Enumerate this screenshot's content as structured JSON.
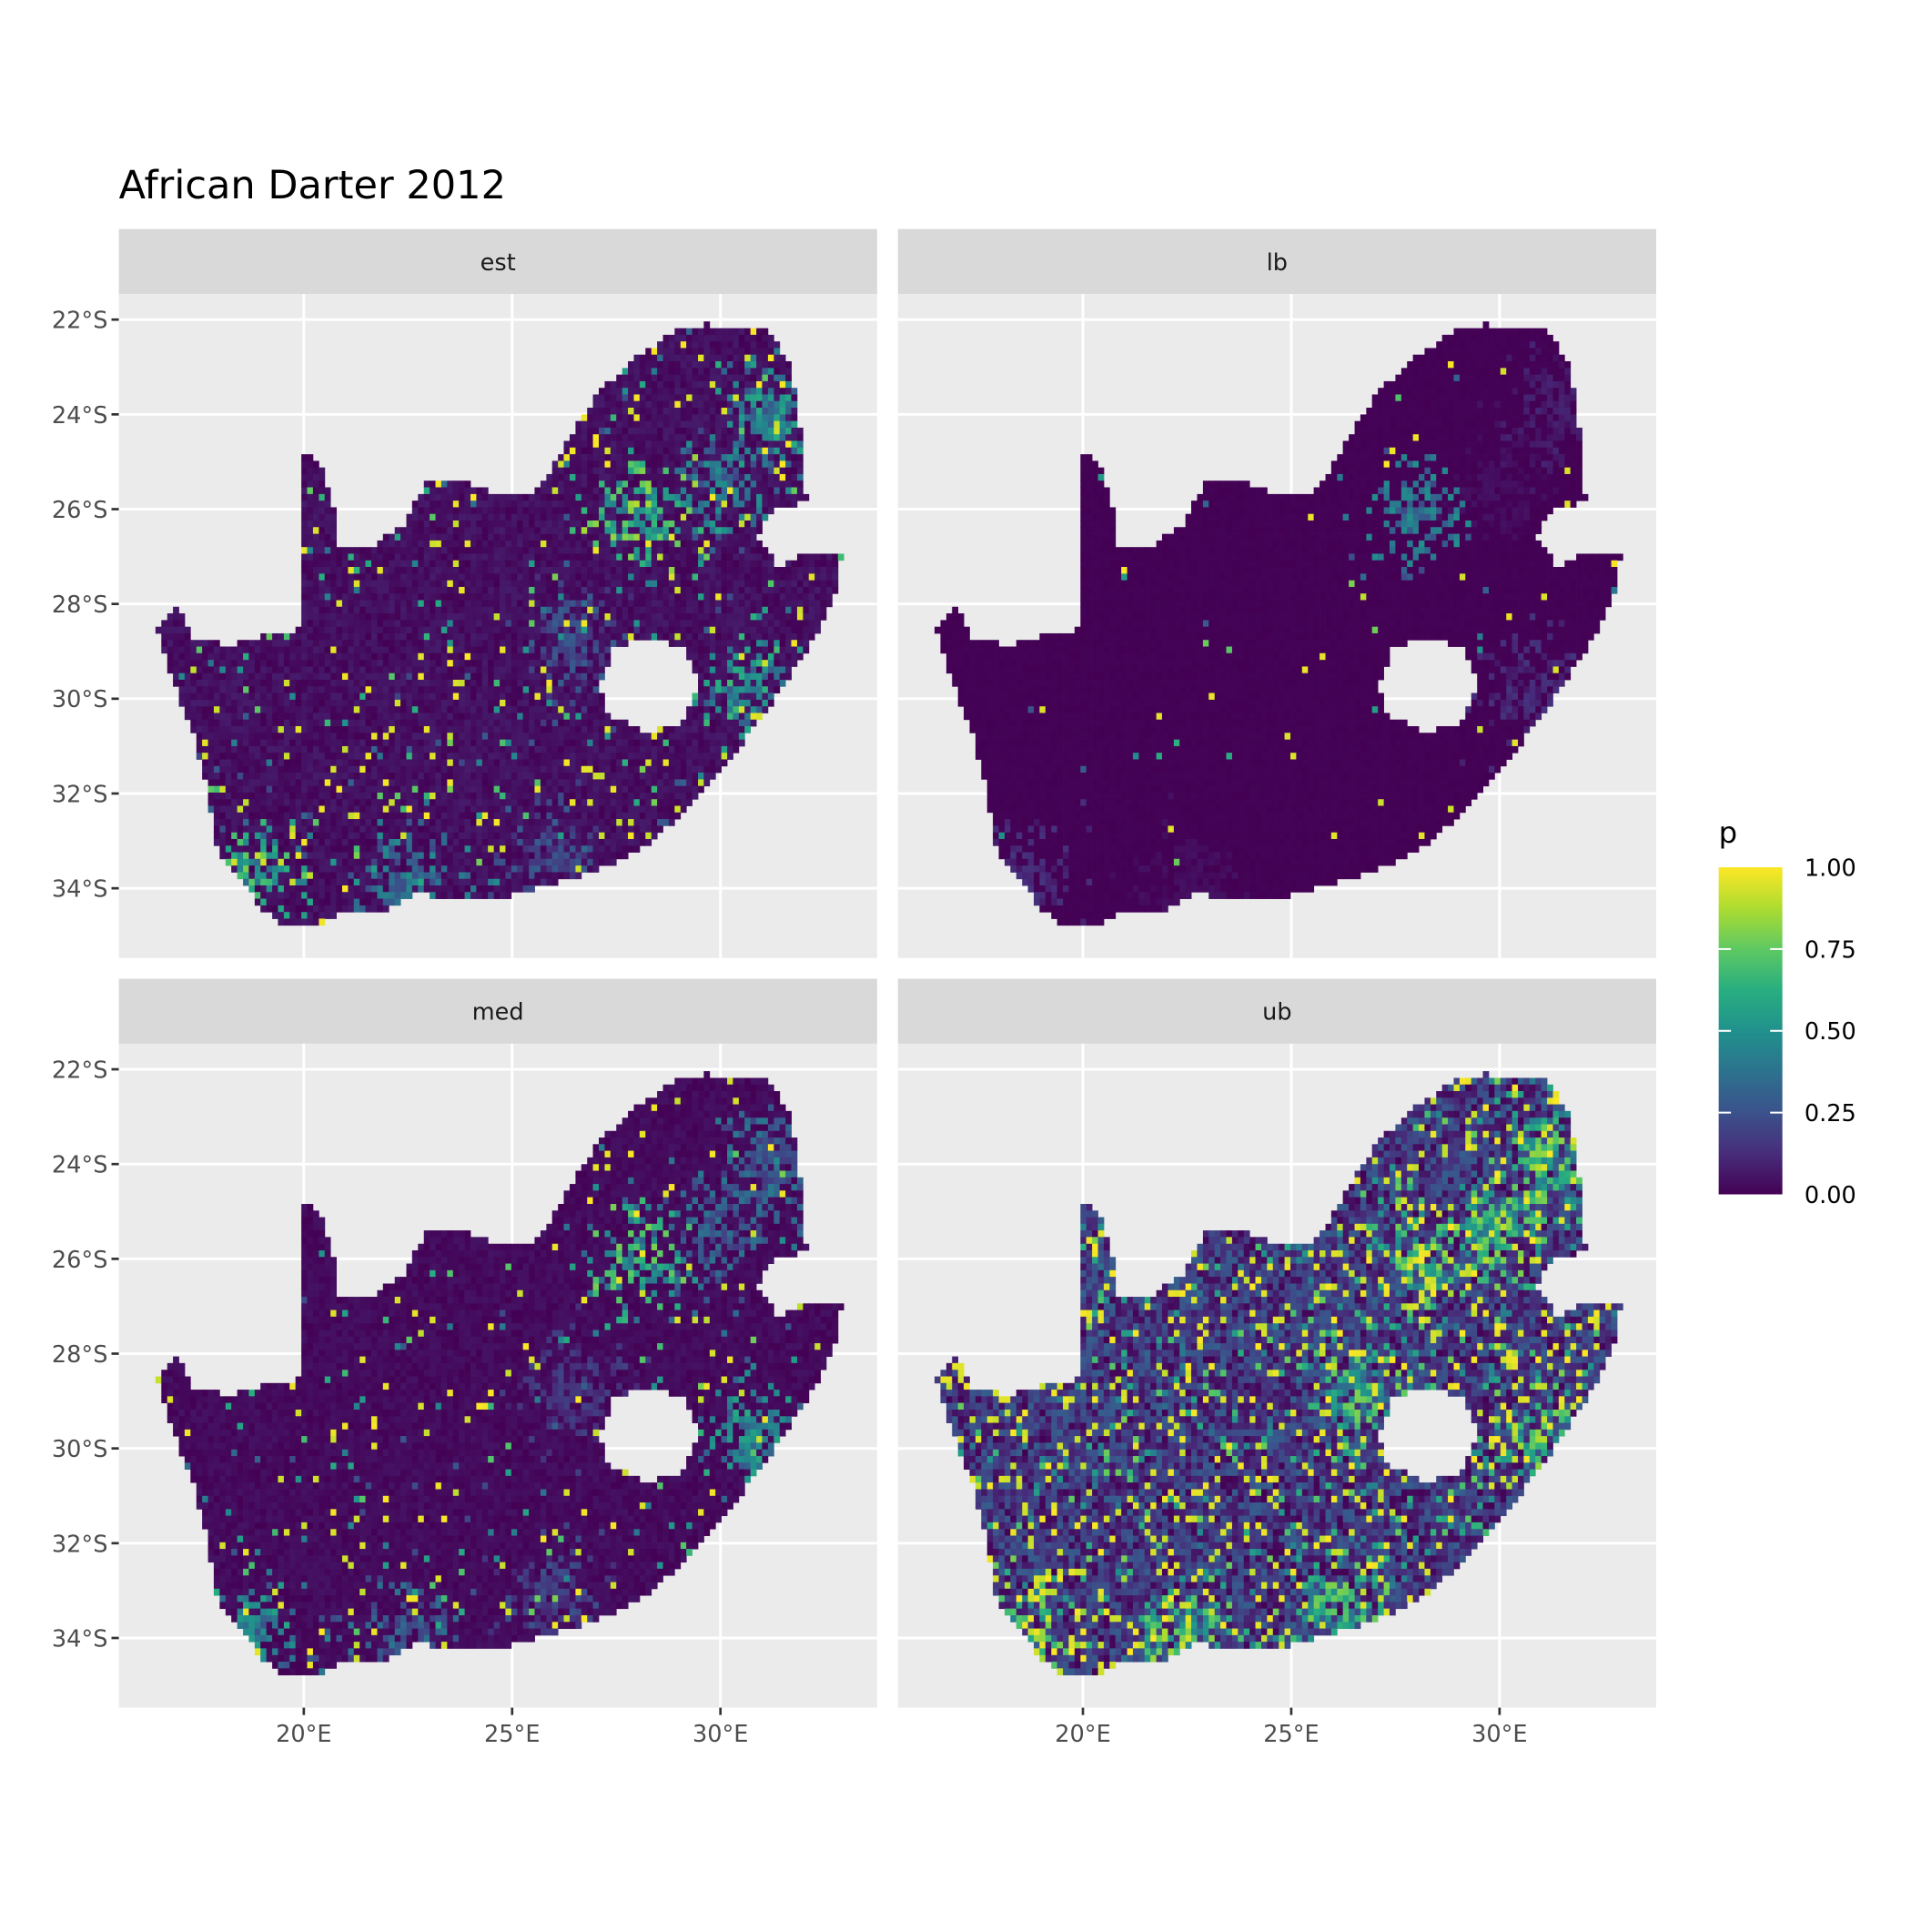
{
  "chart_data": {
    "type": "heatmap",
    "title": "African Darter 2012",
    "facets": [
      "est",
      "lb",
      "med",
      "ub"
    ],
    "x_ticks": [
      {
        "value": 20,
        "label": "20°E"
      },
      {
        "value": 25,
        "label": "25°E"
      },
      {
        "value": 30,
        "label": "30°E"
      }
    ],
    "y_ticks": [
      {
        "value": -22,
        "label": "22°S"
      },
      {
        "value": -24,
        "label": "24°S"
      },
      {
        "value": -26,
        "label": "26°S"
      },
      {
        "value": -28,
        "label": "28°S"
      },
      {
        "value": -30,
        "label": "30°S"
      },
      {
        "value": -32,
        "label": "32°S"
      },
      {
        "value": -34,
        "label": "34°S"
      }
    ],
    "xlim": [
      15.56,
      33.76
    ],
    "ylim": [
      -35.47,
      -21.46
    ],
    "grid": true,
    "legend": {
      "title": "p",
      "position": "right",
      "palette": "viridis",
      "range": [
        0,
        1
      ],
      "ticks": [
        {
          "value": 1,
          "label": "1.00"
        },
        {
          "value": 0.75,
          "label": "0.75"
        },
        {
          "value": 0.5,
          "label": "0.50"
        },
        {
          "value": 0.25,
          "label": "0.25"
        },
        {
          "value": 0,
          "label": "0.00"
        }
      ]
    },
    "colors": {
      "panel_bg": "#ebebeb",
      "strip_bg": "#d9d9d9",
      "grid": "#ffffff",
      "low": "#440154",
      "mid": "#21908c",
      "high": "#fde725"
    },
    "outline_lonlat": [
      [
        16.47,
        -28.52
      ],
      [
        16.97,
        -28.03
      ],
      [
        17.35,
        -28.7
      ],
      [
        18.15,
        -28.88
      ],
      [
        19.47,
        -28.57
      ],
      [
        20.0,
        -28.54
      ],
      [
        20.0,
        -24.77
      ],
      [
        20.41,
        -25.08
      ],
      [
        20.79,
        -26.11
      ],
      [
        20.71,
        -26.76
      ],
      [
        21.53,
        -26.84
      ],
      [
        22.41,
        -26.32
      ],
      [
        22.94,
        -25.39
      ],
      [
        23.74,
        -25.34
      ],
      [
        24.62,
        -25.72
      ],
      [
        25.65,
        -25.59
      ],
      [
        26.18,
        -24.77
      ],
      [
        27.12,
        -23.47
      ],
      [
        28.0,
        -22.8
      ],
      [
        28.97,
        -22.18
      ],
      [
        29.62,
        -22.1
      ],
      [
        31.18,
        -22.23
      ],
      [
        31.68,
        -23.01
      ],
      [
        31.88,
        -24.04
      ],
      [
        32.06,
        -25.85
      ],
      [
        31.24,
        -25.98
      ],
      [
        30.88,
        -26.63
      ],
      [
        31.38,
        -27.2
      ],
      [
        32.12,
        -26.89
      ],
      [
        32.94,
        -26.89
      ],
      [
        32.71,
        -27.92
      ],
      [
        32.35,
        -28.57
      ],
      [
        31.68,
        -29.47
      ],
      [
        31.09,
        -30.25
      ],
      [
        30.35,
        -31.15
      ],
      [
        29.32,
        -32.19
      ],
      [
        28.44,
        -32.96
      ],
      [
        27.41,
        -33.48
      ],
      [
        26.53,
        -33.77
      ],
      [
        25.35,
        -34.05
      ],
      [
        24.47,
        -34.26
      ],
      [
        22.71,
        -34.13
      ],
      [
        21.97,
        -34.44
      ],
      [
        20.94,
        -34.52
      ],
      [
        20.21,
        -34.83
      ],
      [
        19.53,
        -34.78
      ],
      [
        18.94,
        -34.39
      ],
      [
        18.53,
        -33.82
      ],
      [
        17.94,
        -33.35
      ],
      [
        17.85,
        -32.71
      ],
      [
        17.65,
        -31.8
      ],
      [
        17.35,
        -30.77
      ],
      [
        16.91,
        -29.73
      ]
    ],
    "hole_lonlat": [
      [
        27.12,
        -29.73
      ],
      [
        27.41,
        -28.96
      ],
      [
        28.29,
        -28.7
      ],
      [
        29.18,
        -28.96
      ],
      [
        29.53,
        -29.73
      ],
      [
        29.03,
        -30.51
      ],
      [
        28.15,
        -30.71
      ],
      [
        27.26,
        -30.3
      ]
    ],
    "background_p": {
      "est": 0.05,
      "lb": 0.005,
      "med": 0.035,
      "ub": 0.2
    },
    "high_p_areas": [
      {
        "lon": 28.1,
        "lat": -26.1,
        "p": {
          "est": 0.9,
          "lb": 0.5,
          "med": 0.8,
          "ub": 1.0
        }
      },
      {
        "lon": 30.8,
        "lat": -29.8,
        "p": {
          "est": 0.7,
          "lb": 0.15,
          "med": 0.6,
          "ub": 1.0
        }
      },
      {
        "lon": 18.6,
        "lat": -33.9,
        "p": {
          "est": 0.8,
          "lb": 0.15,
          "med": 0.6,
          "ub": 1.0
        }
      },
      {
        "lon": 22.5,
        "lat": -34.0,
        "p": {
          "est": 0.5,
          "lb": 0.05,
          "med": 0.4,
          "ub": 0.9
        }
      },
      {
        "lon": 31.3,
        "lat": -24.0,
        "p": {
          "est": 0.6,
          "lb": 0.1,
          "med": 0.4,
          "ub": 0.9
        }
      },
      {
        "lon": 30.0,
        "lat": -25.5,
        "p": {
          "est": 0.5,
          "lb": 0.05,
          "med": 0.4,
          "ub": 0.9
        }
      },
      {
        "lon": 26.5,
        "lat": -28.8,
        "p": {
          "est": 0.3,
          "lb": 0.0,
          "med": 0.2,
          "ub": 0.8
        }
      },
      {
        "lon": 26.0,
        "lat": -33.3,
        "p": {
          "est": 0.3,
          "lb": 0.0,
          "med": 0.25,
          "ub": 0.8
        }
      }
    ]
  }
}
